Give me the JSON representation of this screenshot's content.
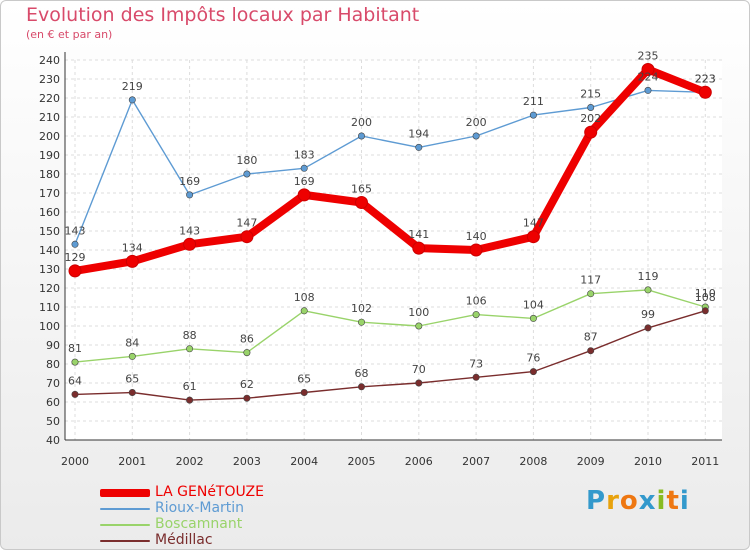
{
  "header": {
    "title": "Evolution des Impôts locaux par Habitant",
    "subtitle": "(en € et par an)"
  },
  "brand": {
    "letters": [
      "P",
      "r",
      "o",
      "x",
      "i",
      "t",
      "i"
    ],
    "colors": [
      "#3399cc",
      "#e8a20c",
      "#ee7711",
      "#3399cc",
      "#88bb22",
      "#ee7711",
      "#3399cc"
    ]
  },
  "chart_data": {
    "type": "line",
    "x": [
      "2000",
      "2001",
      "2002",
      "2003",
      "2004",
      "2005",
      "2006",
      "2007",
      "2008",
      "2009",
      "2010",
      "2011"
    ],
    "ylim": [
      40,
      240
    ],
    "yticks": [
      40,
      50,
      60,
      70,
      80,
      90,
      100,
      110,
      120,
      130,
      140,
      150,
      160,
      170,
      180,
      190,
      200,
      210,
      220,
      230,
      240
    ],
    "grid": true,
    "legend_placement": "bottom-left",
    "series": [
      {
        "name": "LA GENéTOUZE",
        "color": "#ee0000",
        "thick": true,
        "values": [
          129,
          134,
          143,
          147,
          169,
          165,
          141,
          140,
          147,
          202,
          235,
          223
        ],
        "labels": [
          "129",
          "134",
          "143",
          "147",
          "169",
          "165",
          "141",
          "140",
          "147",
          "202",
          "235",
          "223"
        ]
      },
      {
        "name": "Rioux-Martin",
        "color": "#5e9bd3",
        "thick": false,
        "values": [
          143,
          219,
          169,
          180,
          183,
          200,
          194,
          200,
          211,
          215,
          224,
          223
        ],
        "labels": [
          "143",
          "219",
          "169",
          "180",
          "183",
          "200",
          "194",
          "200",
          "211",
          "215",
          "224",
          "223"
        ]
      },
      {
        "name": "Boscamnant",
        "color": "#99d36a",
        "thick": false,
        "values": [
          81,
          84,
          88,
          86,
          108,
          102,
          100,
          106,
          104,
          117,
          119,
          110
        ],
        "labels": [
          "81",
          "84",
          "88",
          "86",
          "108",
          "102",
          "100",
          "106",
          "104",
          "117",
          "119",
          "110"
        ]
      },
      {
        "name": "Médillac",
        "color": "#7a2d2d",
        "thick": false,
        "values": [
          64,
          65,
          61,
          62,
          65,
          68,
          70,
          73,
          76,
          87,
          99,
          108
        ],
        "labels": [
          "64",
          "65",
          "61",
          "62",
          "65",
          "68",
          "70",
          "73",
          "76",
          "87",
          "99",
          "108"
        ]
      }
    ]
  }
}
